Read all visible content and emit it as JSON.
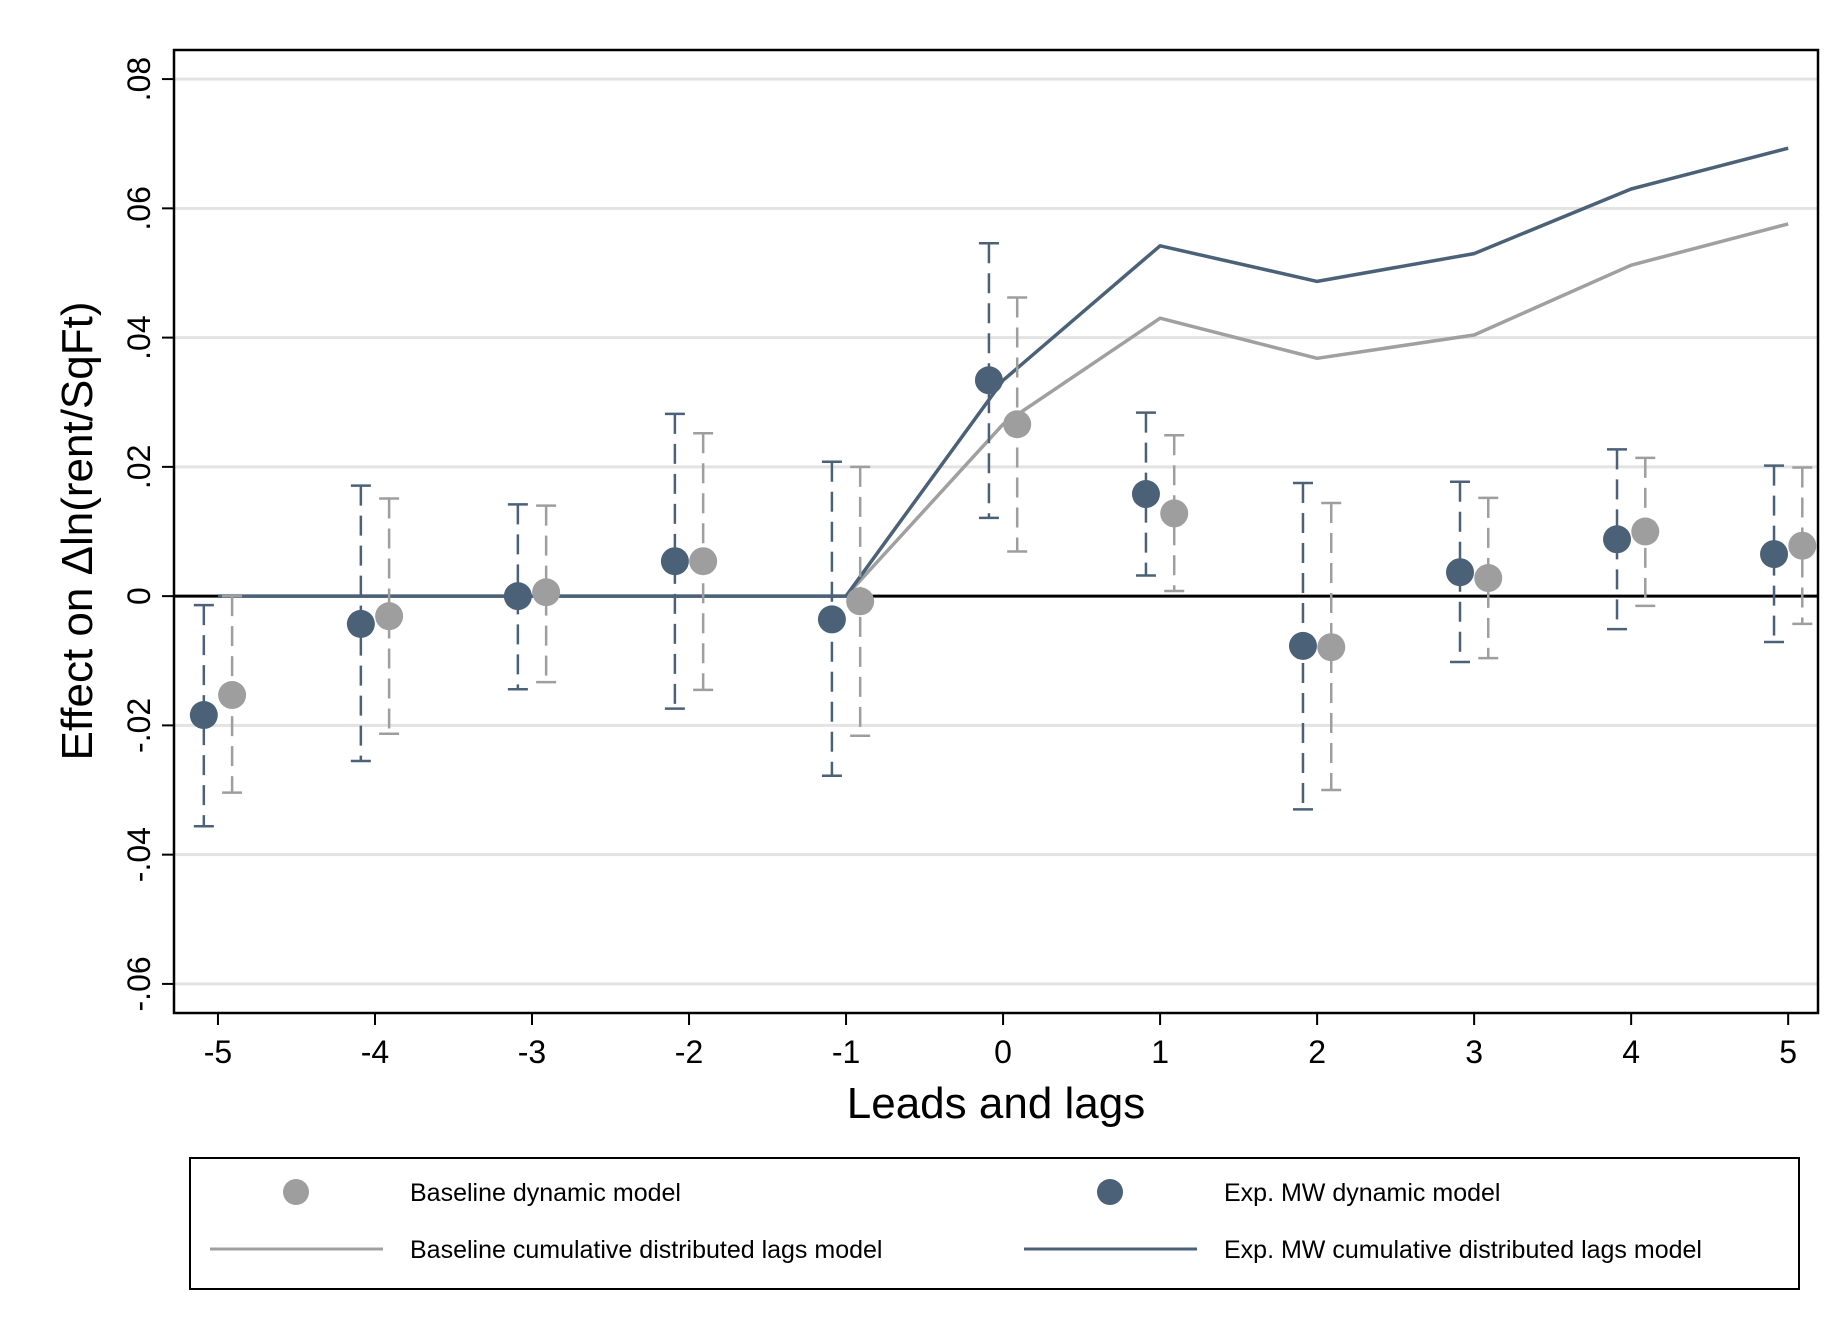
{
  "chart_data": {
    "type": "scatter",
    "xlabel": "Leads and lags",
    "ylabel": "Effect on Δln(rent/SqFt)",
    "x": [
      -5,
      -4,
      -3,
      -2,
      -1,
      0,
      1,
      2,
      3,
      4,
      5
    ],
    "x_tick_labels": [
      "-5",
      "-4",
      "-3",
      "-2",
      "-1",
      "0",
      "1",
      "2",
      "3",
      "4",
      "5"
    ],
    "xlim": [
      -5.28,
      5.19
    ],
    "ylim": [
      -0.0645,
      0.0845
    ],
    "y_ticks": [
      -0.06,
      -0.04,
      -0.02,
      0,
      0.02,
      0.04,
      0.06,
      0.08
    ],
    "y_tick_labels": [
      "-.06",
      "-.04",
      "-.02",
      "0",
      ".02",
      ".04",
      ".06",
      ".08"
    ],
    "grid": true,
    "reference_line_y": 0,
    "legend_position": "bottom",
    "legend": [
      {
        "label": "Baseline dynamic model",
        "kind": "marker",
        "color": "#9e9e9e"
      },
      {
        "label": "Exp. MW dynamic model",
        "kind": "marker",
        "color": "#4b6178"
      },
      {
        "label": "Baseline cumulative distributed lags model",
        "kind": "line",
        "color": "#a0a0a0"
      },
      {
        "label": "Exp. MW cumulative distributed lags model",
        "kind": "line",
        "color": "#4b6178"
      }
    ],
    "series": [
      {
        "name": "Baseline dynamic model",
        "type": "scatter",
        "color": "#9e9e9e",
        "x_offset": 0.09,
        "values": [
          -0.0153,
          -0.0031,
          0.0006,
          0.0054,
          -0.0008,
          0.0266,
          0.0128,
          -0.0079,
          0.0028,
          0.01,
          0.0078
        ],
        "ci_low": [
          -0.0304,
          -0.0213,
          -0.0133,
          -0.0145,
          -0.0216,
          0.0069,
          0.0008,
          -0.03,
          -0.0096,
          -0.0015,
          -0.0043
        ],
        "ci_high": [
          0.0,
          0.0151,
          0.014,
          0.0252,
          0.02,
          0.0462,
          0.0249,
          0.0144,
          0.0152,
          0.0214,
          0.0199
        ]
      },
      {
        "name": "Exp. MW dynamic model",
        "type": "scatter",
        "color": "#4b6178",
        "x_offset": -0.09,
        "values": [
          -0.0184,
          -0.0043,
          0.0,
          0.0054,
          -0.0036,
          0.0334,
          0.0158,
          -0.0077,
          0.0037,
          0.0088,
          0.0065
        ],
        "ci_low": [
          -0.0356,
          -0.0255,
          -0.0144,
          -0.0174,
          -0.0278,
          0.0121,
          0.0032,
          -0.033,
          -0.0102,
          -0.0051,
          -0.0071
        ],
        "ci_high": [
          -0.0014,
          0.0171,
          0.0142,
          0.0282,
          0.0208,
          0.0546,
          0.0284,
          0.0175,
          0.0177,
          0.0227,
          0.0202
        ]
      },
      {
        "name": "Baseline cumulative distributed lags model",
        "type": "line",
        "color": "#a0a0a0",
        "values": [
          0,
          0,
          0,
          0,
          0,
          0.0266,
          0.043,
          0.0368,
          0.0404,
          0.0512,
          0.0576
        ]
      },
      {
        "name": "Exp. MW cumulative distributed lags model",
        "type": "line",
        "color": "#4b6178",
        "values": [
          0,
          0,
          0,
          0,
          0,
          0.0334,
          0.0542,
          0.0487,
          0.053,
          0.063,
          0.0693
        ]
      }
    ]
  }
}
